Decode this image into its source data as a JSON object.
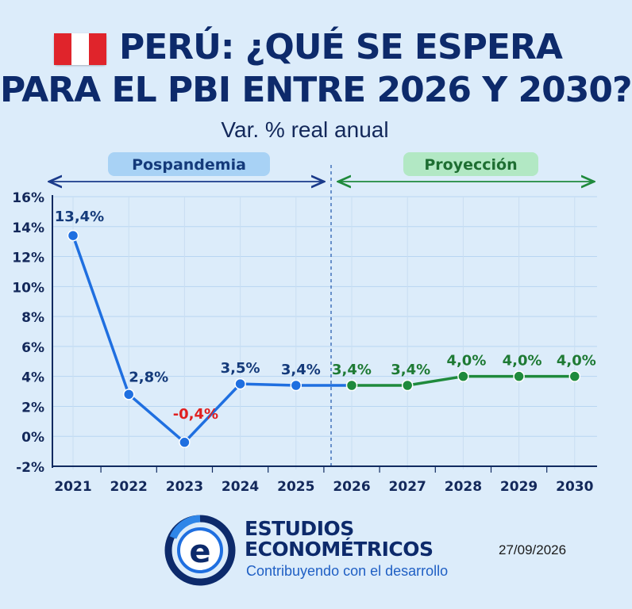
{
  "header": {
    "title_line1": "PERÚ: ¿QUÉ SE ESPERA",
    "title_line2": "PARA EL PBI ENTRE 2026 Y 2030?",
    "subtitle": "Var. % real anual"
  },
  "flag": {
    "country": "Perú",
    "colors": [
      "#e0242b",
      "#ffffff",
      "#e0242b"
    ]
  },
  "periods": {
    "pospandemia": "Pospandemia",
    "proyeccion": "Proyección"
  },
  "chart_data": {
    "type": "line",
    "title": "PERÚ: ¿QUÉ SE ESPERA PARA EL PBI ENTRE 2026 Y 2030?",
    "subtitle": "Var. % real anual",
    "x": [
      "2021",
      "2022",
      "2023",
      "2024",
      "2025",
      "2026",
      "2027",
      "2028",
      "2029",
      "2030"
    ],
    "ylim": [
      -2,
      16
    ],
    "yticks": [
      "16%",
      "14%",
      "12%",
      "10%",
      "8%",
      "6%",
      "4%",
      "2%",
      "0%",
      "-2%"
    ],
    "ytick_values": [
      16,
      14,
      12,
      10,
      8,
      6,
      4,
      2,
      0,
      -2
    ],
    "grid": true,
    "series": [
      {
        "name": "Pospandemia",
        "color": "#1f6fe0",
        "x": [
          "2021",
          "2022",
          "2023",
          "2024",
          "2025"
        ],
        "values": [
          13.4,
          2.8,
          -0.4,
          3.5,
          3.4
        ],
        "labels": [
          "13,4%",
          "2,8%",
          "-0,4%",
          "3,5%",
          "3,4%"
        ]
      },
      {
        "name": "Proyección",
        "color": "#1f8a3c",
        "x": [
          "2026",
          "2027",
          "2028",
          "2029",
          "2030"
        ],
        "values": [
          3.4,
          3.4,
          4.0,
          4.0,
          4.0
        ],
        "labels": [
          "3,4%",
          "3,4%",
          "4,0%",
          "4,0%",
          "4,0%"
        ]
      }
    ],
    "negative_label_color": "#e02020"
  },
  "brand": {
    "line1": "ESTUDIOS",
    "line2": "ECONOMÉTRICOS",
    "tagline": "Contribuyendo con el desarrollo",
    "logo_letter": "e"
  },
  "date": "27/09/2026"
}
